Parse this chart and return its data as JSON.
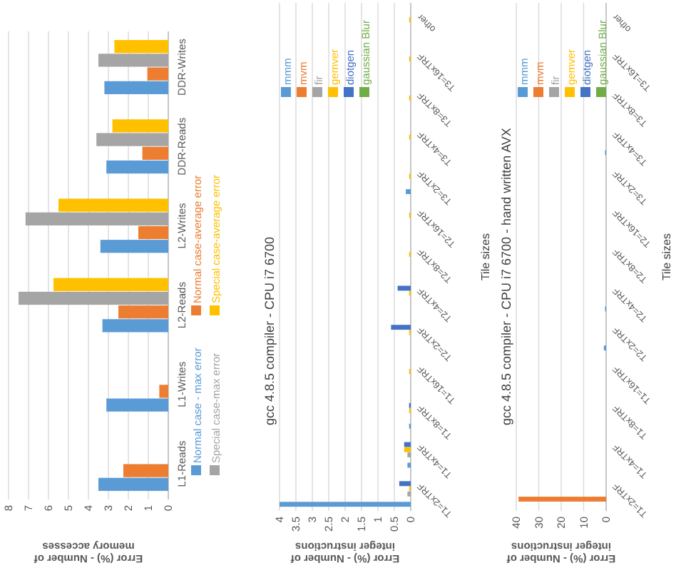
{
  "chart_data": [
    {
      "type": "bar",
      "orientation": "horizontal",
      "xlabel": "Error (%) - Number of memory accesses",
      "categories": [
        "DDR-Writes",
        "DDR-Reads",
        "L2-Writes",
        "L2-Reads",
        "L1-Writes",
        "L1-Reads"
      ],
      "series": [
        {
          "name": "Normal case - max error",
          "color": "#5b9bd5",
          "values": [
            3.2,
            3.1,
            3.4,
            3.3,
            3.1,
            3.5
          ]
        },
        {
          "name": "Normal case-average error",
          "color": "#ed7d31",
          "values": [
            1.05,
            1.3,
            1.5,
            2.5,
            0.45,
            2.25
          ]
        },
        {
          "name": "Special case-max error",
          "color": "#a5a5a5",
          "values": [
            3.5,
            3.6,
            7.15,
            7.5,
            0,
            0
          ]
        },
        {
          "name": "Special case-average error",
          "color": "#ffc000",
          "values": [
            2.7,
            2.8,
            5.5,
            5.75,
            0,
            0
          ]
        }
      ],
      "xlim": [
        8,
        0
      ],
      "xticks": [
        8,
        7,
        6,
        5,
        4,
        3,
        2,
        1,
        0
      ],
      "grid": "x",
      "legend": "right"
    },
    {
      "type": "bar",
      "orientation": "horizontal",
      "title": "gcc 4.8.5 compiler - CPU i7 6700",
      "ylabel": "Tile sizes",
      "xlabel": "Error (%) - Number of integer instructions",
      "categories": [
        "other",
        "T3=16xTRF",
        "T3=8xTRF",
        "T3=4xTRF",
        "T3=2xTRF",
        "T2=16xTRF",
        "T2=8xTRF",
        "T2=4xTRF",
        "T2=2xTRF",
        "T1=16xTRF",
        "T1=8xTRF",
        "T1=4xTRF",
        "T1=2xTRF"
      ],
      "series": [
        {
          "name": "mmm",
          "color": "#5b9bd5",
          "values": [
            0,
            0,
            0,
            0,
            0.15,
            0,
            0,
            0,
            0,
            0,
            0.05,
            0.1,
            4
          ]
        },
        {
          "name": "mvm",
          "color": "#ed7d31",
          "values": [
            0,
            0,
            0,
            0,
            0,
            0,
            0,
            0,
            0,
            0,
            0,
            0,
            0
          ]
        },
        {
          "name": "fir",
          "color": "#a5a5a5",
          "values": [
            0,
            0,
            0,
            0,
            0,
            0,
            0,
            null,
            null,
            0,
            0,
            0.1,
            0.1
          ]
        },
        {
          "name": "gemver",
          "color": "#ffc000",
          "values": [
            0.05,
            0.05,
            0.05,
            0.05,
            0.05,
            0.05,
            0.05,
            0.05,
            0.05,
            0.05,
            0.05,
            0.2,
            0.05
          ]
        },
        {
          "name": "diotgen",
          "color": "#4472c4",
          "values": [
            0,
            0,
            0,
            0,
            0,
            0,
            0,
            0.4,
            0.6,
            0,
            0.05,
            0.2,
            0.35
          ]
        },
        {
          "name": "gaussian Blur",
          "color": "#70ad47",
          "values": [
            0,
            0,
            0,
            0,
            0,
            0,
            0,
            0,
            0,
            0,
            0,
            0,
            0
          ]
        }
      ],
      "xlim": [
        4,
        0
      ],
      "xticks": [
        4,
        3.5,
        3,
        2.5,
        2,
        1.5,
        1,
        0.5,
        0
      ],
      "grid": "x",
      "legend": "top"
    },
    {
      "type": "bar",
      "orientation": "horizontal",
      "title": "gcc 4.8.5 compiler - CPU i7 6700 - hand written AVX",
      "ylabel": "Tile sizes",
      "xlabel": "Error (%) - Number of integer instructions",
      "categories": [
        "other",
        "T3=16xTRF",
        "T3=8xTRF",
        "T3=4xTRF",
        "T3=2xTRF",
        "T2=16xTRF",
        "T2=8xTRF",
        "T2=4xTRF",
        "T2=2xTRF",
        "T1=16xTRF",
        "T1=8xTRF",
        "T1=4xTRF",
        "T1=2xTRF"
      ],
      "series": [
        {
          "name": "mmm",
          "color": "#5b9bd5",
          "values": [
            0,
            0,
            0,
            0.5,
            0,
            0,
            0,
            0.5,
            1,
            0,
            0,
            0,
            0
          ]
        },
        {
          "name": "mvm",
          "color": "#ed7d31",
          "values": [
            0,
            0,
            0,
            0,
            0,
            0,
            0,
            0,
            0,
            0,
            0,
            0,
            39
          ]
        },
        {
          "name": "fir",
          "color": "#a5a5a5",
          "values": [
            0,
            0,
            0,
            0,
            0,
            0,
            0,
            0,
            0,
            0,
            0,
            0,
            0
          ]
        },
        {
          "name": "gemver",
          "color": "#ffc000",
          "values": [
            0,
            0,
            0,
            0,
            0,
            0,
            0,
            0,
            0,
            0,
            0,
            0,
            0
          ]
        },
        {
          "name": "diotgen",
          "color": "#4472c4",
          "values": [
            0,
            0,
            0,
            0,
            0,
            0,
            0,
            0,
            0,
            0,
            0,
            0,
            0
          ]
        },
        {
          "name": "gaussian Blur",
          "color": "#70ad47",
          "values": [
            0,
            0,
            0,
            0,
            0,
            0,
            0,
            0,
            0,
            0,
            0,
            0,
            0
          ]
        }
      ],
      "xlim": [
        40,
        0
      ],
      "xticks": [
        40,
        30,
        20,
        10,
        0
      ],
      "grid": "x",
      "legend": "top"
    }
  ]
}
